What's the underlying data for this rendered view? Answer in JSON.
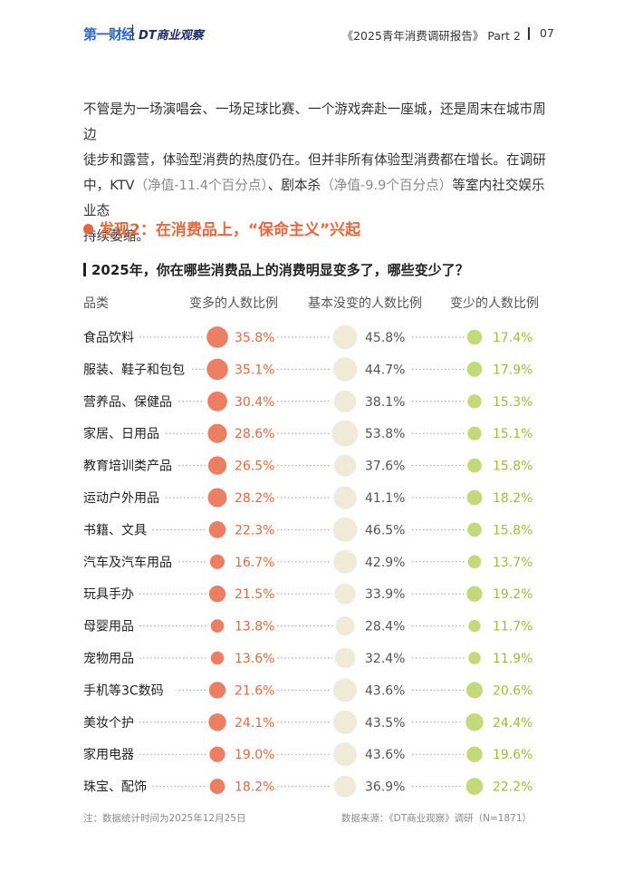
{
  "header": {
    "logo_primary": "第一财经",
    "logo_secondary": "DT商业观察",
    "report_title": "《2025青年消费调研报告》 Part 2",
    "page_number": "07"
  },
  "intro": {
    "line1": "不管是为一场演唱会、一场足球比赛、一个游戏奔赴一座城，还是周末在城市周边",
    "line2": "徒步和露营，体验型消费的热度仍在。但并非所有体验型消费都在增长。在调研",
    "line3_a": "中，KTV",
    "line3_b": "（净值-11.4个百分点）",
    "line3_c": "、剧本杀",
    "line3_d": "（净值-9.9个百分点）",
    "line3_e": "等室内社交娱乐业态",
    "line4": "持续萎缩。"
  },
  "finding_title": "发现2：在消费品上，“保命主义”兴起",
  "question": "2025年，你在哪些消费品上的消费明显变多了，哪些变少了？",
  "chart_data": {
    "type": "table",
    "column_headers": [
      "品类",
      "变多的人数比例",
      "基本没变的人数比例",
      "变少的人数比例"
    ],
    "categories": [
      "食品饮料",
      "服装、鞋子和包包",
      "营养品、保健品",
      "家居、日用品",
      "教育培训类产品",
      "运动户外用品",
      "书籍、文具",
      "汽车及汽车用品",
      "玩具手办",
      "母婴用品",
      "宠物用品",
      "手机等3C数码",
      "美妆个护",
      "家用电器",
      "珠宝、配饰"
    ],
    "series": [
      {
        "name": "变多的人数比例",
        "color": "#ec7e63",
        "values": [
          35.8,
          35.1,
          30.4,
          28.6,
          26.5,
          28.2,
          22.3,
          16.7,
          21.5,
          13.8,
          13.6,
          21.6,
          24.1,
          19.0,
          18.2
        ]
      },
      {
        "name": "基本没变的人数比例",
        "color": "#efebd8",
        "values": [
          45.8,
          44.7,
          38.1,
          53.8,
          37.6,
          41.1,
          46.5,
          42.9,
          33.9,
          28.4,
          32.4,
          43.6,
          43.5,
          43.6,
          36.9
        ]
      },
      {
        "name": "变少的人数比例",
        "color": "#c3d97a",
        "values": [
          17.4,
          17.9,
          15.3,
          15.1,
          15.8,
          18.2,
          15.8,
          13.7,
          19.2,
          11.7,
          11.9,
          20.6,
          24.4,
          19.6,
          22.2
        ]
      }
    ],
    "value_suffix": "%",
    "label_colors": [
      "#e8673e",
      "#555555",
      "#9abf3a"
    ]
  },
  "footer": {
    "note": "注：数据统计时间为2025年12月25日",
    "source": "数据来源：《DT商业观察》调研（N=1871）"
  }
}
